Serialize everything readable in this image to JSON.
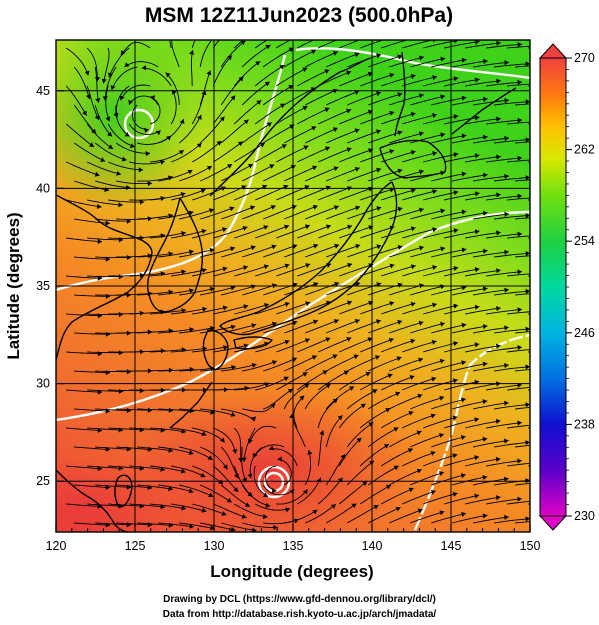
{
  "title": "MSM 12Z11Jun2023 (500.0hPa)",
  "xlabel": "Longitude (degrees)",
  "ylabel": "Latitude  (degrees)",
  "credit_line1": "Drawing by DCL (https://www.gfd-dennou.org/library/dcl/)",
  "credit_line2": "Data from http://database.rish.kyoto-u.ac.jp/arch/jmadata/",
  "map": {
    "lon_range": [
      120,
      150
    ],
    "lat_range": [
      22.4,
      47.6
    ],
    "lon_ticks": [
      120,
      125,
      130,
      135,
      140,
      145,
      150
    ],
    "lat_ticks": [
      25,
      30,
      35,
      40,
      45
    ],
    "graticule_step_deg": 5,
    "overlay": "wind streamlines with arrows",
    "shaded_field": "temperature (K)"
  },
  "colorbar": {
    "range": [
      230,
      270
    ],
    "ticks": [
      {
        "value": 270,
        "label": "270"
      },
      {
        "value": 262,
        "label": "262"
      },
      {
        "value": 254,
        "label": "254"
      },
      {
        "value": 246,
        "label": "246"
      },
      {
        "value": 238,
        "label": "238"
      },
      {
        "value": 230,
        "label": "230"
      }
    ],
    "colors": [
      "#e000c8",
      "#5a00c8",
      "#1010d0",
      "#0070e0",
      "#00b4e0",
      "#00d8a0",
      "#20d040",
      "#70e010",
      "#d8e800",
      "#ffc000",
      "#ff7a10",
      "#f04040"
    ]
  },
  "lows": [
    {
      "lon": 125.7,
      "lat": 43.8
    },
    {
      "lon": 134.1,
      "lat": 25.2
    }
  ],
  "colors": {
    "warm": "#ee4a3a",
    "orange": "#f57a2a",
    "yellow": "#e6d21f",
    "green": "#5ed21f",
    "contour": "#ffffff"
  }
}
